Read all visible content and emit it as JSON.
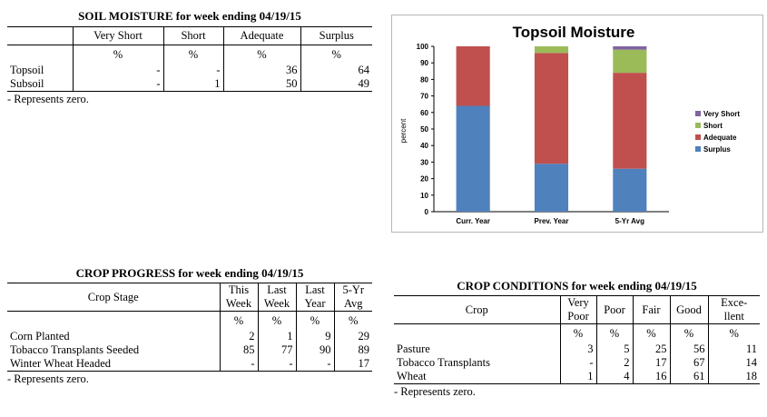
{
  "soil_moisture": {
    "title": "SOIL MOISTURE for week ending 04/19/15",
    "columns": [
      "Very Short",
      "Short",
      "Adequate",
      "Surplus"
    ],
    "unit_row": [
      "%",
      "%",
      "%",
      "%"
    ],
    "rows": [
      {
        "label": "Topsoil",
        "values": [
          "-",
          "-",
          "36",
          "64"
        ]
      },
      {
        "label": "Subsoil",
        "values": [
          "-",
          "1",
          "50",
          "49"
        ]
      }
    ],
    "note": "- Represents zero."
  },
  "crop_progress": {
    "title": "CROP PROGRESS for week ending 04/19/15",
    "stage_header": "Crop Stage",
    "columns": [
      [
        "This",
        "Week"
      ],
      [
        "Last",
        "Week"
      ],
      [
        "Last",
        "Year"
      ],
      [
        "5-Yr",
        "Avg"
      ]
    ],
    "unit_row": [
      "%",
      "%",
      "%",
      "%"
    ],
    "rows": [
      {
        "label": "Corn Planted",
        "values": [
          "2",
          "1",
          "9",
          "29"
        ]
      },
      {
        "label": "Tobacco Transplants Seeded",
        "values": [
          "85",
          "77",
          "90",
          "89"
        ]
      },
      {
        "label": "Winter Wheat Headed",
        "values": [
          "-",
          "-",
          "-",
          "17"
        ]
      }
    ],
    "note": "- Represents zero."
  },
  "crop_conditions": {
    "title": "CROP CONDITIONS for week ending 04/19/15",
    "crop_header": "Crop",
    "columns": [
      [
        "Very",
        "Poor"
      ],
      [
        "Poor"
      ],
      [
        "Fair"
      ],
      [
        "Good"
      ],
      [
        "Exce-",
        "llent"
      ]
    ],
    "unit_row": [
      "%",
      "%",
      "%",
      "%",
      "%"
    ],
    "rows": [
      {
        "label": "Pasture",
        "values": [
          "3",
          "5",
          "25",
          "56",
          "11"
        ]
      },
      {
        "label": "Tobacco Transplants",
        "values": [
          "-",
          "2",
          "17",
          "67",
          "14"
        ]
      },
      {
        "label": "Wheat",
        "values": [
          "1",
          "4",
          "16",
          "61",
          "18"
        ]
      }
    ],
    "note": "- Represents zero."
  },
  "chart_data": {
    "type": "bar",
    "stacked": true,
    "title": "Topsoil Moisture",
    "xlabel": "",
    "ylabel": "percent",
    "ylim": [
      0,
      100
    ],
    "yticks": [
      0,
      10,
      20,
      30,
      40,
      50,
      60,
      70,
      80,
      90,
      100
    ],
    "categories": [
      "Curr. Year",
      "Prev. Year",
      "5-Yr Avg"
    ],
    "series": [
      {
        "name": "Surplus",
        "color": "#4f81bd",
        "values": [
          64,
          29,
          26
        ]
      },
      {
        "name": "Adequate",
        "color": "#c0504d",
        "values": [
          36,
          67,
          58
        ]
      },
      {
        "name": "Short",
        "color": "#9bbb59",
        "values": [
          0,
          4,
          14
        ]
      },
      {
        "name": "Very Short",
        "color": "#8064a2",
        "values": [
          0,
          0,
          2
        ]
      }
    ],
    "legend_order": [
      "Very Short",
      "Short",
      "Adequate",
      "Surplus"
    ],
    "legend_position": "right",
    "grid": false
  }
}
